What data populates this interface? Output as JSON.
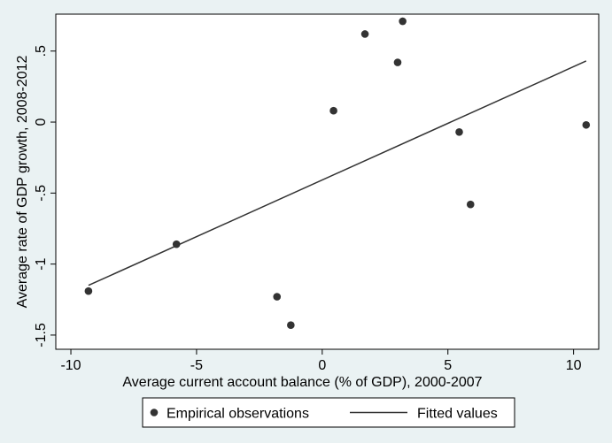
{
  "chart_data": {
    "type": "scatter",
    "title": "",
    "xlabel": "Average current account balance (% of GDP), 2000-2007",
    "ylabel": "Average rate of GDP growth, 2008-2012",
    "xlim": [
      -10.6,
      11.0
    ],
    "ylim": [
      -1.6,
      0.76
    ],
    "x_ticks": [
      -10,
      -5,
      0,
      5,
      10
    ],
    "x_tick_labels": [
      "-10",
      "-5",
      "0",
      "5",
      "10"
    ],
    "y_ticks": [
      -1.5,
      -1,
      -0.5,
      0,
      0.5
    ],
    "y_tick_labels": [
      "-1.5",
      "-1",
      "-.5",
      "0",
      ".5"
    ],
    "grid": false,
    "legend_position": "bottom",
    "series": [
      {
        "name": "Empirical observations",
        "kind": "scatter",
        "color": "#333333",
        "points": [
          {
            "x": -9.3,
            "y": -1.19
          },
          {
            "x": -5.8,
            "y": -0.86
          },
          {
            "x": -1.8,
            "y": -1.23
          },
          {
            "x": -1.25,
            "y": -1.43
          },
          {
            "x": 0.45,
            "y": 0.08
          },
          {
            "x": 1.7,
            "y": 0.62
          },
          {
            "x": 3.2,
            "y": 0.71
          },
          {
            "x": 3.0,
            "y": 0.42
          },
          {
            "x": 5.45,
            "y": -0.07
          },
          {
            "x": 5.9,
            "y": -0.58
          },
          {
            "x": 10.5,
            "y": -0.02
          }
        ]
      },
      {
        "name": "Fitted values",
        "kind": "line",
        "color": "#333333",
        "points": [
          {
            "x": -9.3,
            "y": -1.15
          },
          {
            "x": 10.5,
            "y": 0.43
          }
        ]
      }
    ],
    "colors": {
      "background": "#eaf2f3",
      "plot_background": "#ffffff",
      "ink": "#000000"
    }
  }
}
